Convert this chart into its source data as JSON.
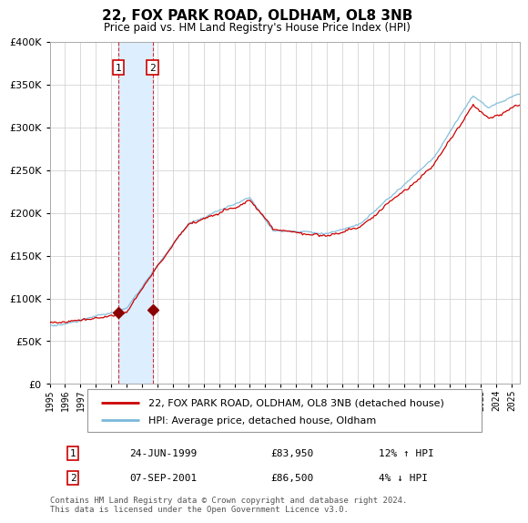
{
  "title": "22, FOX PARK ROAD, OLDHAM, OL8 3NB",
  "subtitle": "Price paid vs. HM Land Registry's House Price Index (HPI)",
  "legend_line1": "22, FOX PARK ROAD, OLDHAM, OL8 3NB (detached house)",
  "legend_line2": "HPI: Average price, detached house, Oldham",
  "transaction1_date": "24-JUN-1999",
  "transaction1_price": 83950,
  "transaction1_hpi": "12% ↑ HPI",
  "transaction2_date": "07-SEP-2001",
  "transaction2_price": 86500,
  "transaction2_hpi": "4% ↓ HPI",
  "footer": "Contains HM Land Registry data © Crown copyright and database right 2024.\nThis data is licensed under the Open Government Licence v3.0.",
  "hpi_color": "#7ab8d9",
  "price_color": "#cc0000",
  "marker_color": "#8b0000",
  "vline_color": "#cc0000",
  "shade_color": "#ddeeff",
  "ylim": [
    0,
    400000
  ],
  "yticks": [
    0,
    50000,
    100000,
    150000,
    200000,
    250000,
    300000,
    350000,
    400000
  ],
  "x_start_year": 1995.0,
  "x_end_year": 2025.5,
  "transaction1_x": 1999.48,
  "transaction2_x": 2001.68
}
